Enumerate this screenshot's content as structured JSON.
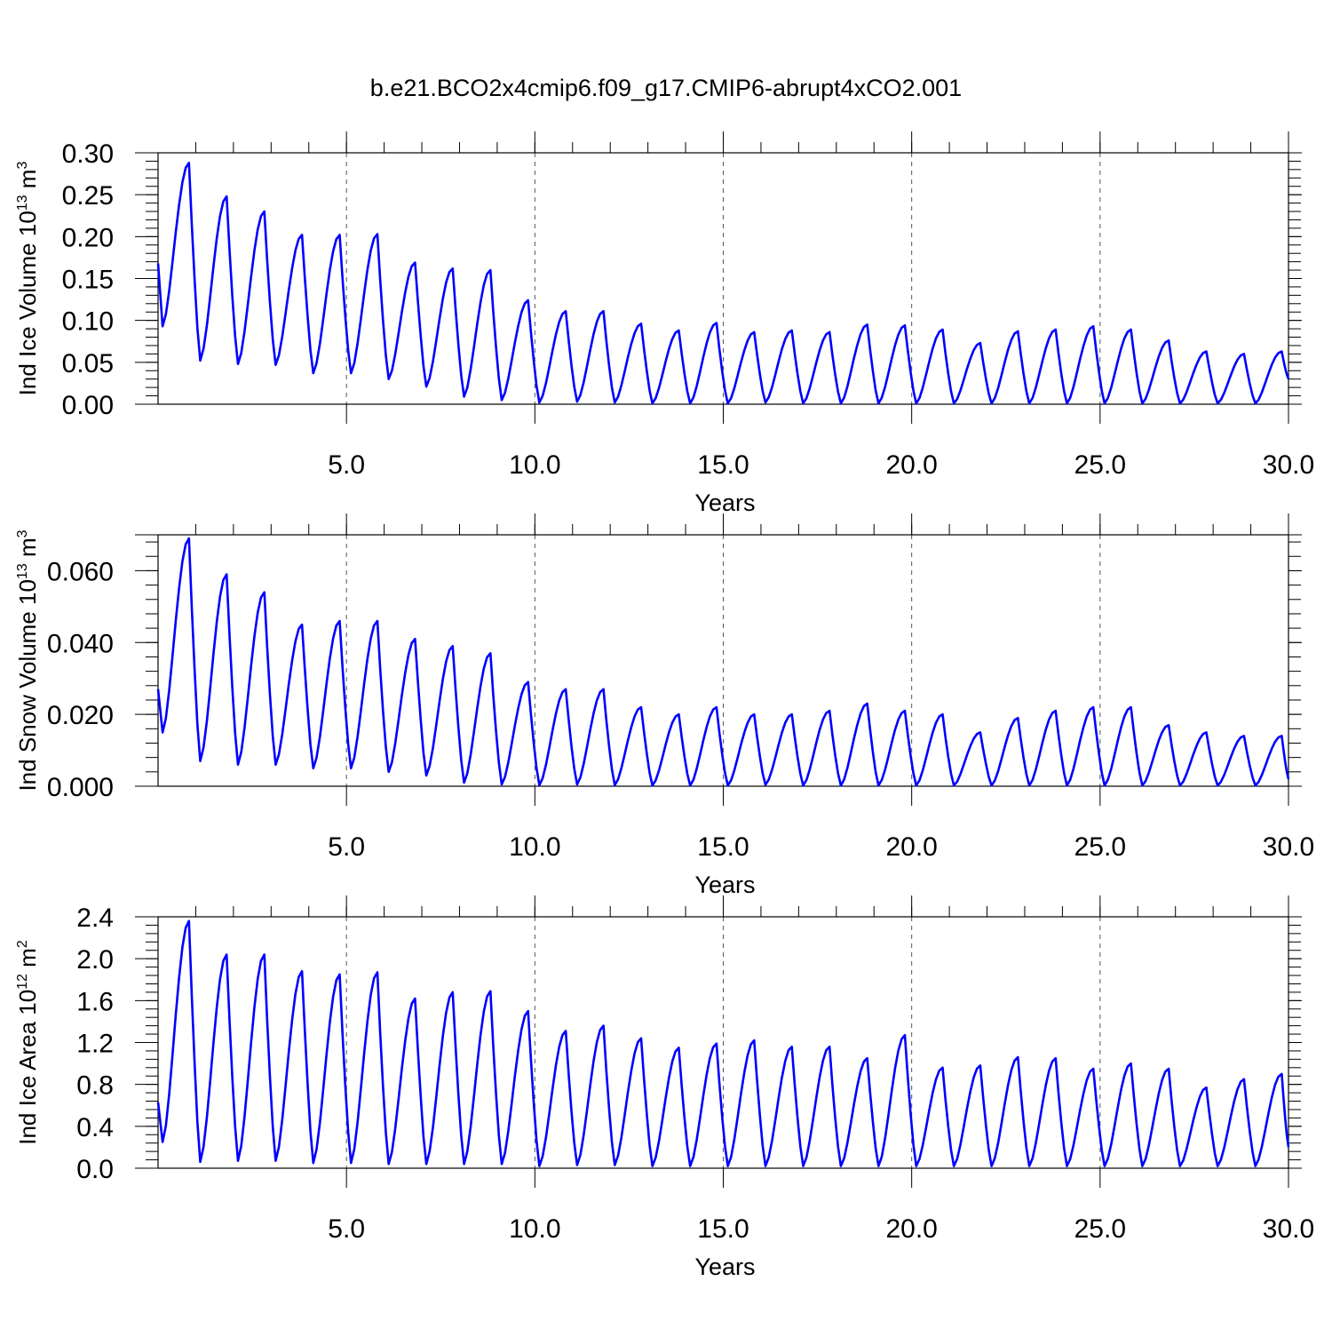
{
  "title": "b.e21.BCO2x4cmip6.f09_g17.CMIP6-abrupt4xCO2.001",
  "colors": {
    "line": "#0000ff",
    "axis": "#000000",
    "grid": "#555555"
  },
  "chart_data": [
    {
      "type": "line",
      "ylabel": "Ind Ice Volume 10",
      "ylabel_sup": "13",
      "ylabel_unit": " m",
      "ylabel_unit_sup": "3",
      "xlabel": "Years",
      "xlim": [
        0,
        30
      ],
      "ylim": [
        0,
        0.3
      ],
      "xticks": [
        5,
        10,
        15,
        20,
        25,
        30
      ],
      "xtick_labels": [
        "5.0",
        "10.0",
        "15.0",
        "20.0",
        "25.0",
        "30.0"
      ],
      "yticks": [
        0,
        0.05,
        0.1,
        0.15,
        0.2,
        0.25,
        0.3
      ],
      "ytick_labels": [
        "0.00",
        "0.05",
        "0.10",
        "0.15",
        "0.20",
        "0.25",
        "0.30"
      ],
      "ygrid_minor": 0.01,
      "vgrid": [
        5,
        10,
        15,
        20,
        25
      ],
      "series": [
        {
          "name": "Ind Ice Volume",
          "peaks": [
            0.288,
            0.248,
            0.23,
            0.202,
            0.202,
            0.203,
            0.169,
            0.162,
            0.16,
            0.124,
            0.111,
            0.111,
            0.096,
            0.088,
            0.097,
            0.086,
            0.088,
            0.086,
            0.095,
            0.094,
            0.089,
            0.073,
            0.087,
            0.089,
            0.093,
            0.089,
            0.076,
            0.063,
            0.06,
            0.063
          ],
          "troughs": [
            0.093,
            0.052,
            0.048,
            0.047,
            0.037,
            0.037,
            0.03,
            0.021,
            0.009,
            0.005,
            0.002,
            0.003,
            0.002,
            0.001,
            0.001,
            0.001,
            0.002,
            0.001,
            0.001,
            0.001,
            0.001,
            0.001,
            0.001,
            0.001,
            0.001,
            0.001,
            0.001,
            0.001,
            0.001,
            0.001
          ],
          "start": 0.168,
          "end": 0.03
        }
      ]
    },
    {
      "type": "line",
      "ylabel": "Ind Snow Volume 10",
      "ylabel_sup": "13",
      "ylabel_unit": " m",
      "ylabel_unit_sup": "3",
      "xlabel": "Years",
      "xlim": [
        0,
        30
      ],
      "ylim": [
        0,
        0.07
      ],
      "xticks": [
        5,
        10,
        15,
        20,
        25,
        30
      ],
      "xtick_labels": [
        "5.0",
        "10.0",
        "15.0",
        "20.0",
        "25.0",
        "30.0"
      ],
      "yticks": [
        0,
        0.02,
        0.04,
        0.06
      ],
      "ytick_labels": [
        "0.000",
        "0.020",
        "0.040",
        "0.060"
      ],
      "ygrid_minor": 0.004,
      "vgrid": [
        5,
        10,
        15,
        20,
        25
      ],
      "series": [
        {
          "name": "Ind Snow Volume",
          "peaks": [
            0.069,
            0.059,
            0.054,
            0.045,
            0.046,
            0.046,
            0.041,
            0.039,
            0.037,
            0.029,
            0.027,
            0.027,
            0.022,
            0.02,
            0.022,
            0.02,
            0.02,
            0.021,
            0.023,
            0.021,
            0.02,
            0.015,
            0.019,
            0.021,
            0.022,
            0.022,
            0.017,
            0.015,
            0.014,
            0.014
          ],
          "troughs": [
            0.015,
            0.007,
            0.006,
            0.006,
            0.005,
            0.005,
            0.004,
            0.003,
            0.001,
            0.0005,
            0.0003,
            0.0005,
            0.0003,
            0.0002,
            0.0002,
            0.0002,
            0.0004,
            0.0002,
            0.0002,
            0.0002,
            0.0002,
            0.0002,
            0.0002,
            0.0002,
            0.0002,
            0.0002,
            0.0002,
            0.0002,
            0.0002,
            0.0002
          ],
          "start": 0.027,
          "end": 0.002
        }
      ]
    },
    {
      "type": "line",
      "ylabel": "Ind Ice Area 10",
      "ylabel_sup": "12",
      "ylabel_unit": " m",
      "ylabel_unit_sup": "2",
      "xlabel": "Years",
      "xlim": [
        0,
        30
      ],
      "ylim": [
        0,
        2.4
      ],
      "xticks": [
        5,
        10,
        15,
        20,
        25,
        30
      ],
      "xtick_labels": [
        "5.0",
        "10.0",
        "15.0",
        "20.0",
        "25.0",
        "30.0"
      ],
      "yticks": [
        0,
        0.4,
        0.8,
        1.2,
        1.6,
        2.0,
        2.4
      ],
      "ytick_labels": [
        "0.0",
        "0.4",
        "0.8",
        "1.2",
        "1.6",
        "2.0",
        "2.4"
      ],
      "ygrid_minor": 0.08,
      "vgrid": [
        5,
        10,
        15,
        20,
        25
      ],
      "series": [
        {
          "name": "Ind Ice Area",
          "peaks": [
            2.36,
            2.04,
            2.04,
            1.88,
            1.85,
            1.87,
            1.62,
            1.68,
            1.69,
            1.5,
            1.31,
            1.36,
            1.24,
            1.15,
            1.19,
            1.22,
            1.16,
            1.16,
            1.05,
            1.27,
            0.96,
            0.98,
            1.06,
            1.05,
            0.95,
            1.0,
            0.95,
            0.77,
            0.85,
            0.9
          ],
          "troughs": [
            0.25,
            0.06,
            0.07,
            0.07,
            0.05,
            0.05,
            0.04,
            0.04,
            0.04,
            0.04,
            0.02,
            0.03,
            0.03,
            0.02,
            0.02,
            0.02,
            0.02,
            0.02,
            0.02,
            0.02,
            0.02,
            0.02,
            0.02,
            0.02,
            0.02,
            0.02,
            0.02,
            0.02,
            0.02,
            0.02
          ],
          "start": 0.63,
          "end": 0.2
        }
      ]
    }
  ]
}
